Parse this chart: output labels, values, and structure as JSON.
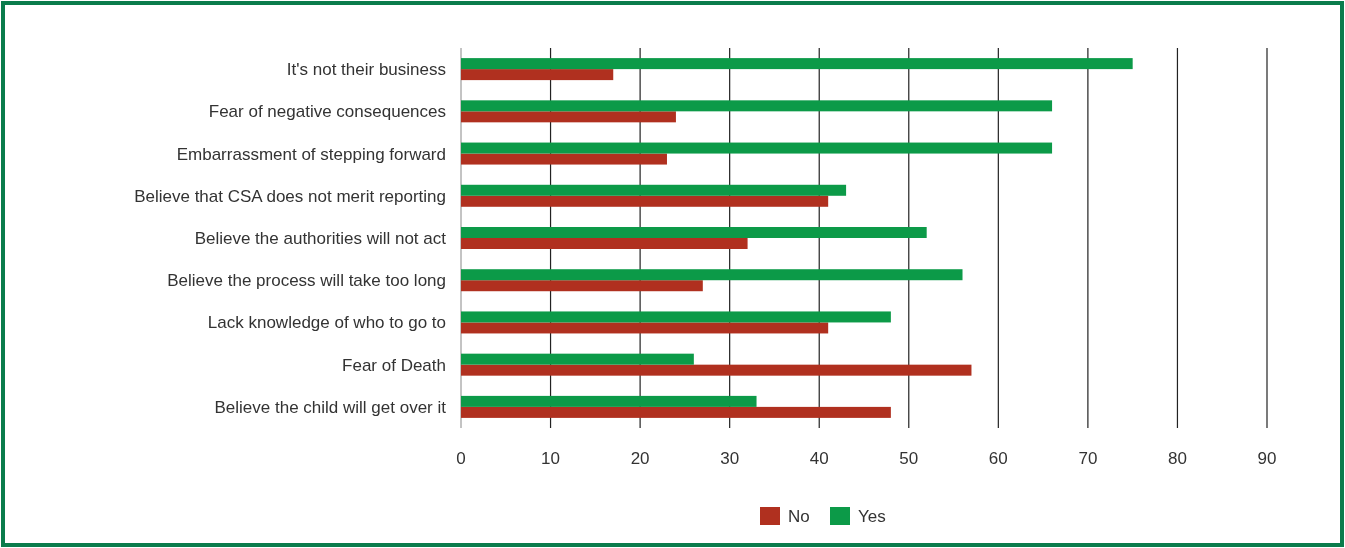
{
  "chart_data": {
    "type": "bar",
    "orientation": "horizontal",
    "categories": [
      "It's not their business",
      "Fear of negative consequences",
      "Embarrassment of stepping forward",
      "Believe that CSA does not merit reporting",
      "Believe the authorities will not act",
      "Believe the process will take too long",
      "Lack knowledge of who to go to",
      "Fear of Death",
      "Believe the child will get over it"
    ],
    "series": [
      {
        "name": "No",
        "color": "#b0301f",
        "values": [
          17,
          24,
          23,
          41,
          32,
          27,
          41,
          57,
          48
        ]
      },
      {
        "name": "Yes",
        "color": "#0c9a48",
        "values": [
          75,
          66,
          66,
          43,
          52,
          56,
          48,
          26,
          33
        ]
      }
    ],
    "xlim": [
      0,
      90
    ],
    "xticks": [
      0,
      10,
      20,
      30,
      40,
      50,
      60,
      70,
      80,
      90
    ],
    "grid": "x",
    "legend": "bottom"
  }
}
